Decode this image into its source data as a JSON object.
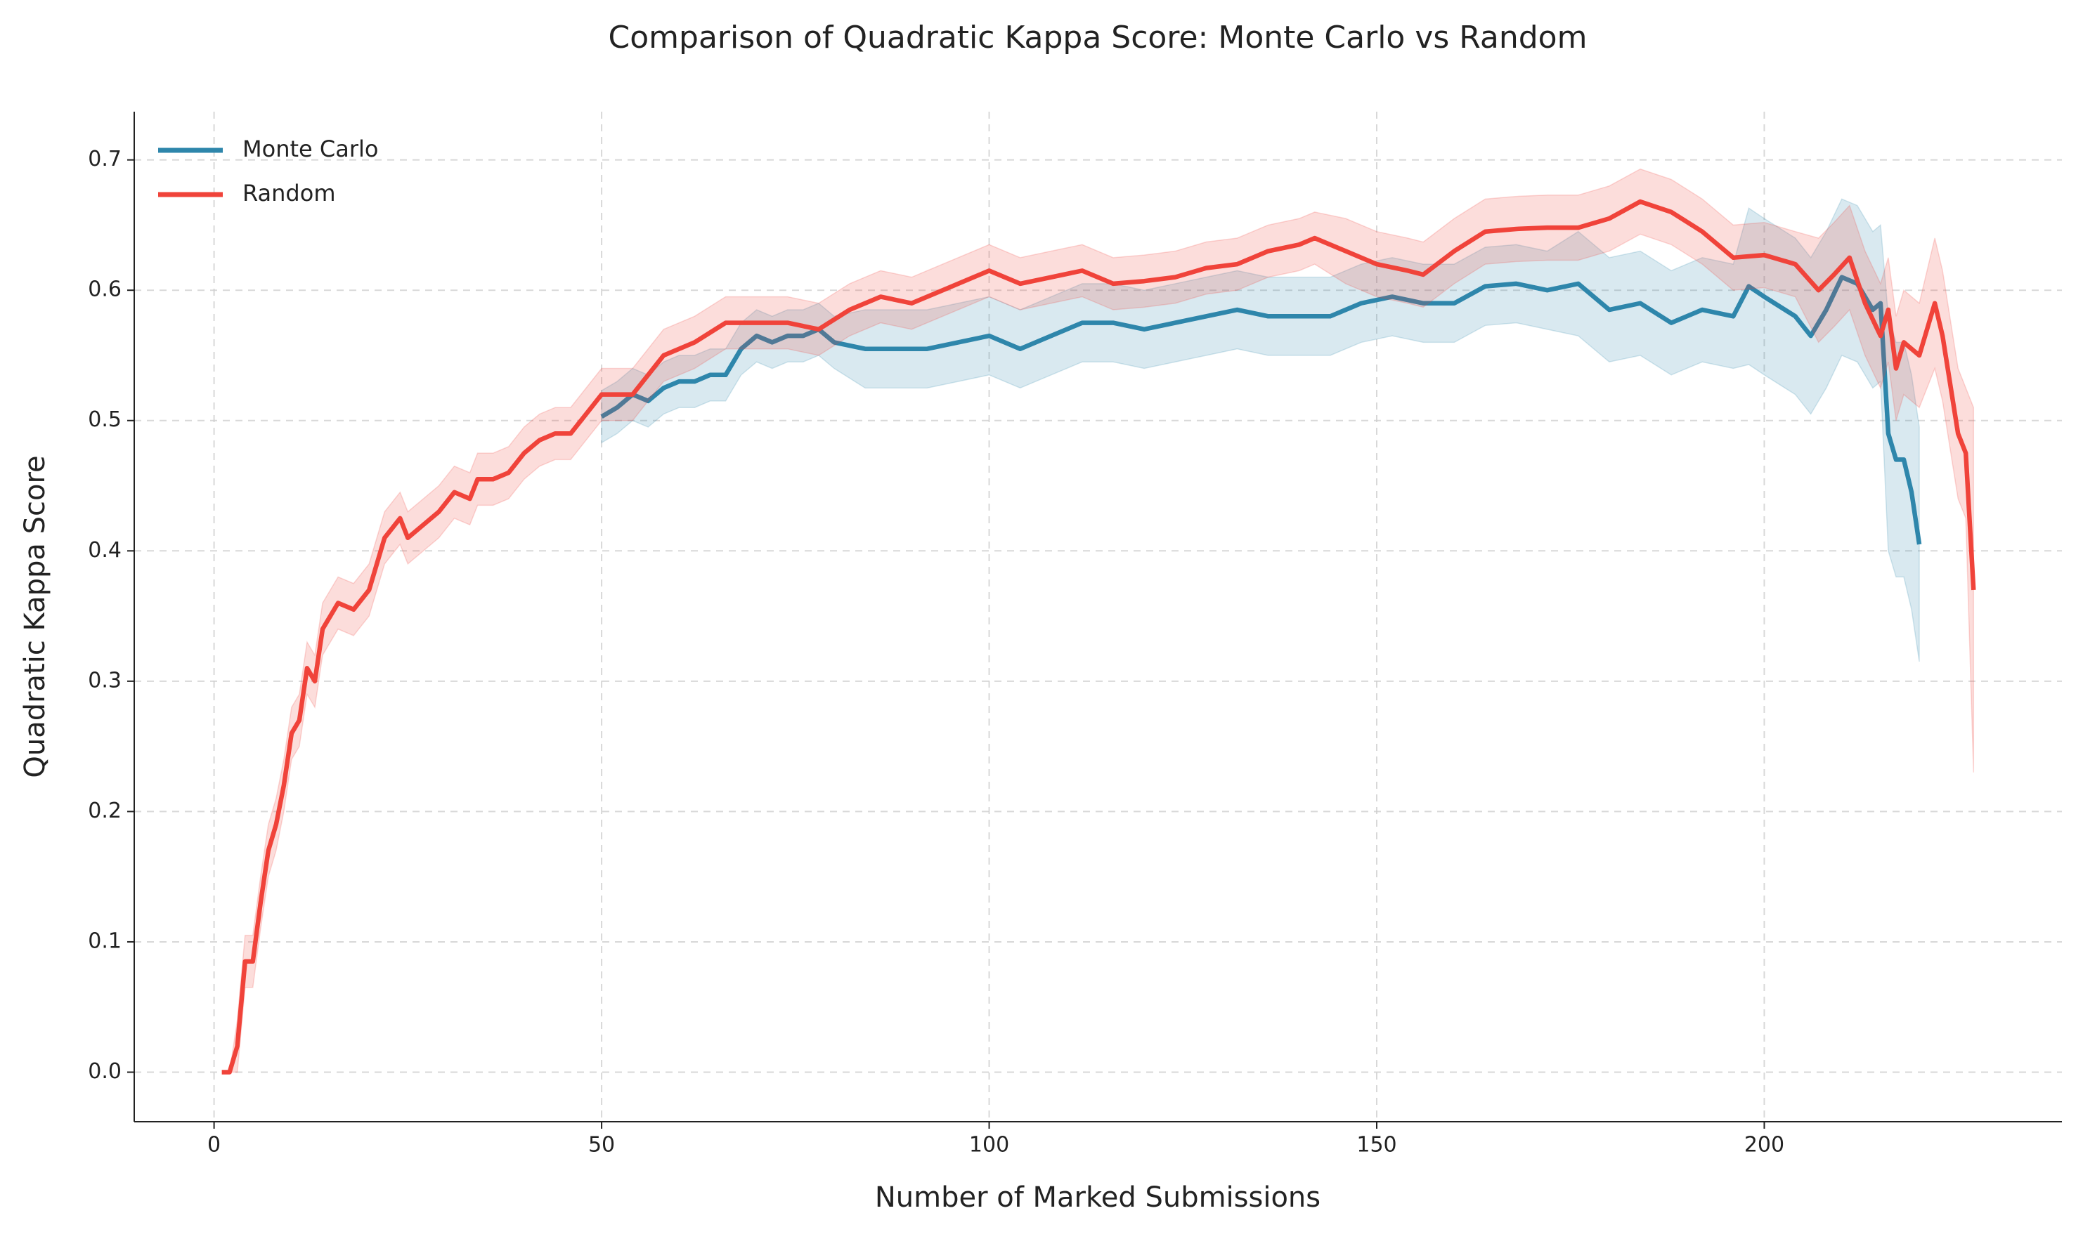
{
  "chart_data": {
    "type": "line",
    "title": "Comparison of Quadratic Kappa Score: Monte Carlo vs Random",
    "xlabel": "Number of Marked Submissions",
    "ylabel": "Quadratic Kappa Score",
    "xlim": [
      -10.3,
      238.4
    ],
    "ylim": [
      -0.038,
      0.737
    ],
    "xticks": [
      0,
      50,
      100,
      150,
      200
    ],
    "yticks": [
      {
        "value": 0,
        "label": "0.0"
      },
      0.1,
      0.2,
      0.3,
      0.4,
      0.5,
      0.6,
      0.7
    ],
    "grid": true,
    "legend": "upper left",
    "series": [
      {
        "name": "Monte Carlo",
        "color": "#2e86ab",
        "x": [
          50,
          52,
          54,
          56,
          58,
          60,
          62,
          64,
          66,
          68,
          70,
          72,
          74,
          76,
          78,
          80,
          84,
          88,
          92,
          96,
          100,
          104,
          108,
          112,
          116,
          120,
          124,
          128,
          132,
          136,
          140,
          144,
          148,
          152,
          156,
          160,
          164,
          168,
          172,
          176,
          180,
          184,
          188,
          192,
          196,
          198,
          200,
          204,
          206,
          208,
          210,
          212,
          214,
          215,
          216,
          217,
          218,
          219,
          220
        ],
        "values": [
          0.503,
          0.51,
          0.52,
          0.515,
          0.525,
          0.53,
          0.53,
          0.535,
          0.535,
          0.555,
          0.565,
          0.56,
          0.565,
          0.565,
          0.57,
          0.56,
          0.555,
          0.555,
          0.555,
          0.56,
          0.565,
          0.555,
          0.565,
          0.575,
          0.575,
          0.57,
          0.575,
          0.58,
          0.585,
          0.58,
          0.58,
          0.58,
          0.59,
          0.595,
          0.59,
          0.59,
          0.603,
          0.605,
          0.6,
          0.605,
          0.585,
          0.59,
          0.575,
          0.585,
          0.58,
          0.603,
          0.595,
          0.58,
          0.565,
          0.585,
          0.61,
          0.605,
          0.585,
          0.59,
          0.49,
          0.47,
          0.47,
          0.445,
          0.405
        ],
        "lower": [
          0.483,
          0.49,
          0.5,
          0.495,
          0.505,
          0.51,
          0.51,
          0.515,
          0.515,
          0.535,
          0.545,
          0.54,
          0.545,
          0.545,
          0.55,
          0.54,
          0.525,
          0.525,
          0.525,
          0.53,
          0.535,
          0.525,
          0.535,
          0.545,
          0.545,
          0.54,
          0.545,
          0.55,
          0.555,
          0.55,
          0.55,
          0.55,
          0.56,
          0.565,
          0.56,
          0.56,
          0.573,
          0.575,
          0.57,
          0.565,
          0.545,
          0.55,
          0.535,
          0.545,
          0.54,
          0.543,
          0.535,
          0.52,
          0.505,
          0.525,
          0.55,
          0.545,
          0.525,
          0.53,
          0.4,
          0.38,
          0.38,
          0.355,
          0.315
        ],
        "upper": [
          0.523,
          0.53,
          0.54,
          0.535,
          0.545,
          0.55,
          0.55,
          0.555,
          0.555,
          0.575,
          0.585,
          0.58,
          0.585,
          0.585,
          0.59,
          0.58,
          0.585,
          0.585,
          0.585,
          0.59,
          0.595,
          0.585,
          0.595,
          0.605,
          0.605,
          0.6,
          0.605,
          0.61,
          0.615,
          0.61,
          0.61,
          0.61,
          0.62,
          0.625,
          0.62,
          0.62,
          0.633,
          0.635,
          0.63,
          0.645,
          0.625,
          0.63,
          0.615,
          0.625,
          0.62,
          0.663,
          0.655,
          0.64,
          0.625,
          0.645,
          0.67,
          0.665,
          0.645,
          0.65,
          0.58,
          0.56,
          0.56,
          0.535,
          0.495
        ]
      },
      {
        "name": "Random",
        "color": "#f0433a",
        "x": [
          1,
          2,
          3,
          4,
          5,
          6,
          7,
          8,
          9,
          10,
          11,
          12,
          13,
          14,
          16,
          18,
          20,
          22,
          24,
          25,
          27,
          29,
          31,
          33,
          34,
          36,
          38,
          40,
          42,
          44,
          46,
          48,
          50,
          54,
          58,
          62,
          66,
          70,
          74,
          78,
          82,
          86,
          90,
          94,
          98,
          100,
          104,
          108,
          112,
          116,
          120,
          124,
          128,
          132,
          136,
          140,
          142,
          146,
          150,
          154,
          156,
          160,
          164,
          168,
          172,
          176,
          180,
          184,
          188,
          192,
          196,
          200,
          204,
          207,
          209,
          211,
          213,
          215,
          216,
          217,
          218,
          220,
          222,
          223,
          225,
          226,
          227
        ],
        "values": [
          0,
          0,
          0.02,
          0.085,
          0.085,
          0.13,
          0.17,
          0.19,
          0.22,
          0.26,
          0.27,
          0.31,
          0.3,
          0.34,
          0.36,
          0.355,
          0.37,
          0.41,
          0.425,
          0.41,
          0.42,
          0.43,
          0.445,
          0.44,
          0.455,
          0.455,
          0.46,
          0.475,
          0.485,
          0.49,
          0.49,
          0.505,
          0.52,
          0.52,
          0.55,
          0.56,
          0.575,
          0.575,
          0.575,
          0.57,
          0.585,
          0.595,
          0.59,
          0.6,
          0.61,
          0.615,
          0.605,
          0.61,
          0.615,
          0.605,
          0.607,
          0.61,
          0.617,
          0.62,
          0.63,
          0.635,
          0.64,
          0.63,
          0.62,
          0.615,
          0.612,
          0.63,
          0.645,
          0.647,
          0.648,
          0.648,
          0.655,
          0.668,
          0.66,
          0.645,
          0.625,
          0.627,
          0.62,
          0.6,
          0.612,
          0.625,
          0.59,
          0.565,
          0.585,
          0.54,
          0.56,
          0.55,
          0.59,
          0.565,
          0.49,
          0.475,
          0.37
        ],
        "lower": [
          0,
          0,
          0,
          0.065,
          0.065,
          0.11,
          0.15,
          0.17,
          0.2,
          0.24,
          0.25,
          0.29,
          0.28,
          0.32,
          0.34,
          0.335,
          0.35,
          0.39,
          0.405,
          0.39,
          0.4,
          0.41,
          0.425,
          0.42,
          0.435,
          0.435,
          0.44,
          0.455,
          0.465,
          0.47,
          0.47,
          0.485,
          0.5,
          0.5,
          0.53,
          0.54,
          0.555,
          0.555,
          0.555,
          0.55,
          0.565,
          0.575,
          0.57,
          0.58,
          0.59,
          0.595,
          0.585,
          0.59,
          0.595,
          0.585,
          0.587,
          0.59,
          0.597,
          0.6,
          0.61,
          0.615,
          0.62,
          0.605,
          0.595,
          0.59,
          0.587,
          0.605,
          0.62,
          0.622,
          0.623,
          0.623,
          0.63,
          0.643,
          0.635,
          0.62,
          0.6,
          0.602,
          0.595,
          0.56,
          0.572,
          0.585,
          0.55,
          0.525,
          0.545,
          0.5,
          0.52,
          0.51,
          0.54,
          0.515,
          0.44,
          0.425,
          0.23
        ],
        "upper": [
          0,
          0,
          0.04,
          0.105,
          0.105,
          0.15,
          0.19,
          0.21,
          0.24,
          0.28,
          0.29,
          0.33,
          0.32,
          0.36,
          0.38,
          0.375,
          0.39,
          0.43,
          0.445,
          0.43,
          0.44,
          0.45,
          0.465,
          0.46,
          0.475,
          0.475,
          0.48,
          0.495,
          0.505,
          0.51,
          0.51,
          0.525,
          0.54,
          0.54,
          0.57,
          0.58,
          0.595,
          0.595,
          0.595,
          0.59,
          0.605,
          0.615,
          0.61,
          0.62,
          0.63,
          0.635,
          0.625,
          0.63,
          0.635,
          0.625,
          0.627,
          0.63,
          0.637,
          0.64,
          0.65,
          0.655,
          0.66,
          0.655,
          0.645,
          0.64,
          0.637,
          0.655,
          0.67,
          0.672,
          0.673,
          0.673,
          0.68,
          0.693,
          0.685,
          0.67,
          0.65,
          0.652,
          0.645,
          0.64,
          0.652,
          0.665,
          0.63,
          0.605,
          0.625,
          0.58,
          0.6,
          0.59,
          0.64,
          0.615,
          0.54,
          0.525,
          0.51
        ]
      }
    ]
  }
}
